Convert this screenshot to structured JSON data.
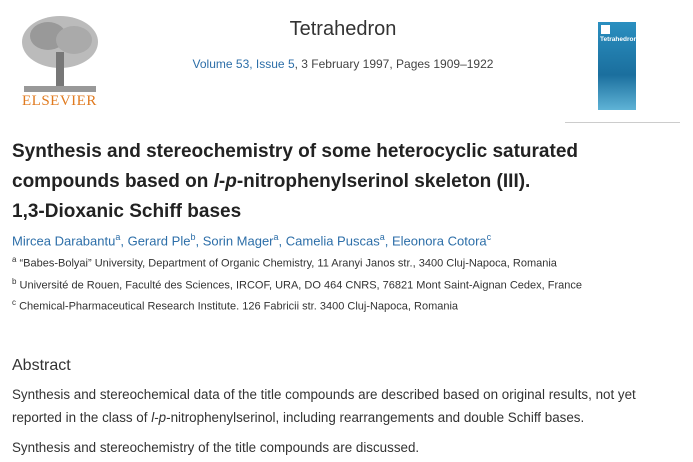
{
  "header": {
    "journal": "Tetrahedron",
    "volume": "Volume 53",
    "issue": "Issue 5",
    "details": ", 3 February 1997, Pages 1909–1922",
    "publisher_logo": "ELSEVIER",
    "cover_title": "Tetrahedron"
  },
  "article": {
    "title_parts": [
      "Synthesis and stereochemistry of some heterocyclic saturated compounds based on ",
      "l",
      "-",
      "p",
      "-nitrophenylserinol skeleton (III).",
      "1,3-Dioxanic Schiff bases"
    ],
    "authors": [
      {
        "name": "Mircea Darabantu",
        "sup": "a",
        "sep": ", "
      },
      {
        "name": "Gerard Ple",
        "sup": "b",
        "sep": ", "
      },
      {
        "name": "Sorin Mager",
        "sup": "a",
        "sep": ", "
      },
      {
        "name": "Camelia Puscas",
        "sup": "a",
        "sep": ", "
      },
      {
        "name": "Eleonora Cotora",
        "sup": "c"
      }
    ],
    "affiliations": [
      {
        "mark": "a",
        "text": "“Babes-Bolyai” University, Department of Organic Chemistry, 11 Aranyi Janos str., 3400 Cluj-Napoca, Romania"
      },
      {
        "mark": "b",
        "text": "Université de Rouen, Faculté des Sciences, IRCOF, URA, DO 464 CNRS, 76821 Mont Saint-Aignan Cedex, France"
      },
      {
        "mark": "c",
        "text": "Chemical-Pharmaceutical Research Institute. 126 Fabricii str. 3400 Cluj-Napoca, Romania"
      }
    ]
  },
  "abstract": {
    "heading": "Abstract",
    "paragraph1_parts": [
      "Synthesis and stereochemical data of the title compounds are described based on original results, not yet reported in the class of ",
      "l",
      "-",
      "p",
      "-nitrophenylserinol, including rearrangements and double Schiff bases."
    ],
    "paragraph2": "Synthesis and stereochemistry of the title compounds are discussed."
  }
}
